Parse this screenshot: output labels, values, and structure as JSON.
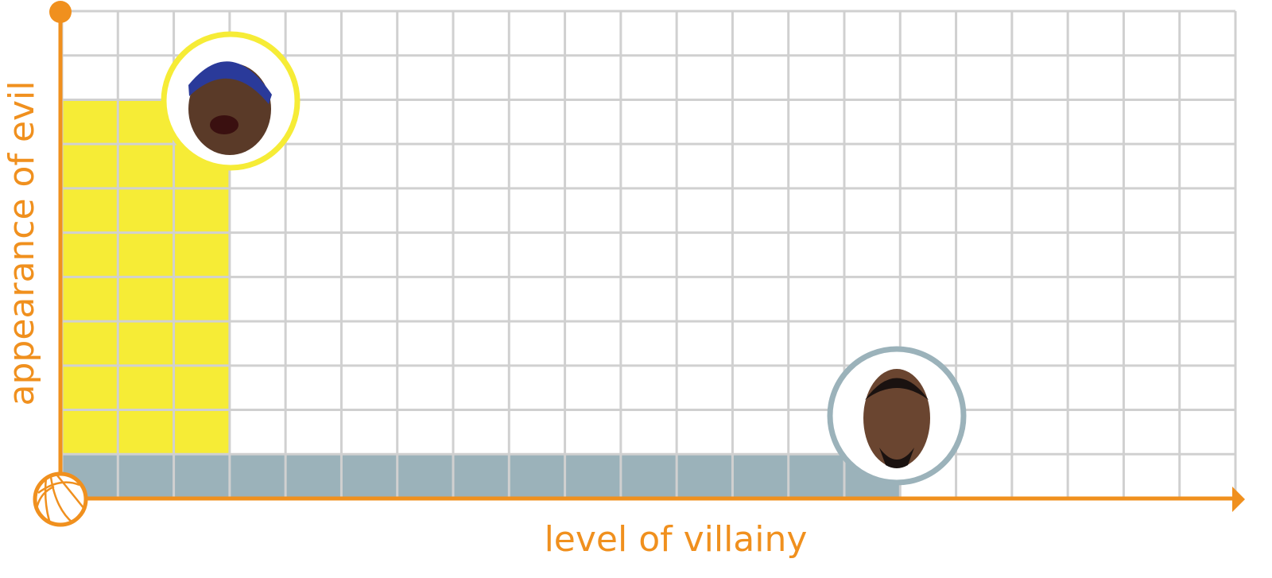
{
  "chart_data": {
    "type": "bar",
    "xlabel": "level of villainy",
    "ylabel": "appearance of evil",
    "xlim": [
      0,
      21
    ],
    "ylim": [
      0,
      11
    ],
    "grid": true,
    "series": [
      {
        "x": 3,
        "y": 9,
        "color": "#f6ec36",
        "marker": "player-face-headband",
        "ring_color": "#f6ec36"
      },
      {
        "x": 15,
        "y": 1,
        "color": "#9bb2ba",
        "marker": "player-face-beard",
        "ring_color": "#9bb2ba"
      }
    ]
  },
  "colors": {
    "axis": "#f0901e",
    "grid": "#d0d0d0"
  },
  "icons": {
    "origin": "basketball-icon",
    "axis_end": "arrow-icon",
    "axis_top": "dot-icon"
  }
}
